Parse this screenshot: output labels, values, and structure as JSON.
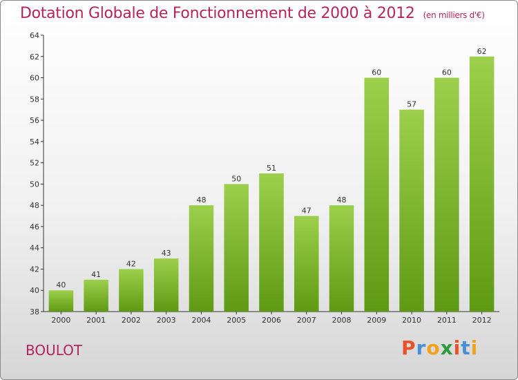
{
  "header": {
    "title": "Dotation Globale de Fonctionnement de 2000 à 2012",
    "unit_note": "(en milliers d'€)"
  },
  "footer": {
    "commune": "BOULOT",
    "brand_letters": [
      "P",
      "r",
      "o",
      "x",
      "i",
      "t",
      "i"
    ]
  },
  "colors": {
    "title": "#b5245a",
    "bar_top": "#9ccf4c",
    "bar_bottom": "#5f9a14",
    "brand": [
      "#e8512a",
      "#4a8fd6",
      "#f2a21c",
      "#2c9b3a",
      "#e8512a",
      "#4a8fd6",
      "#f2a21c"
    ]
  },
  "chart_data": {
    "type": "bar",
    "title": "Dotation Globale de Fonctionnement de 2000 à 2012",
    "subtitle": "(en milliers d'€)",
    "xlabel": "",
    "ylabel": "",
    "categories": [
      "2000",
      "2001",
      "2002",
      "2003",
      "2004",
      "2005",
      "2006",
      "2007",
      "2008",
      "2009",
      "2010",
      "2011",
      "2012"
    ],
    "values": [
      40,
      41,
      42,
      43,
      48,
      50,
      51,
      47,
      48,
      60,
      57,
      60,
      62
    ],
    "ylim": [
      38,
      64
    ],
    "yticks": [
      38,
      40,
      42,
      44,
      46,
      48,
      50,
      52,
      54,
      56,
      58,
      60,
      62,
      64
    ],
    "grid": false,
    "legend": "none"
  }
}
